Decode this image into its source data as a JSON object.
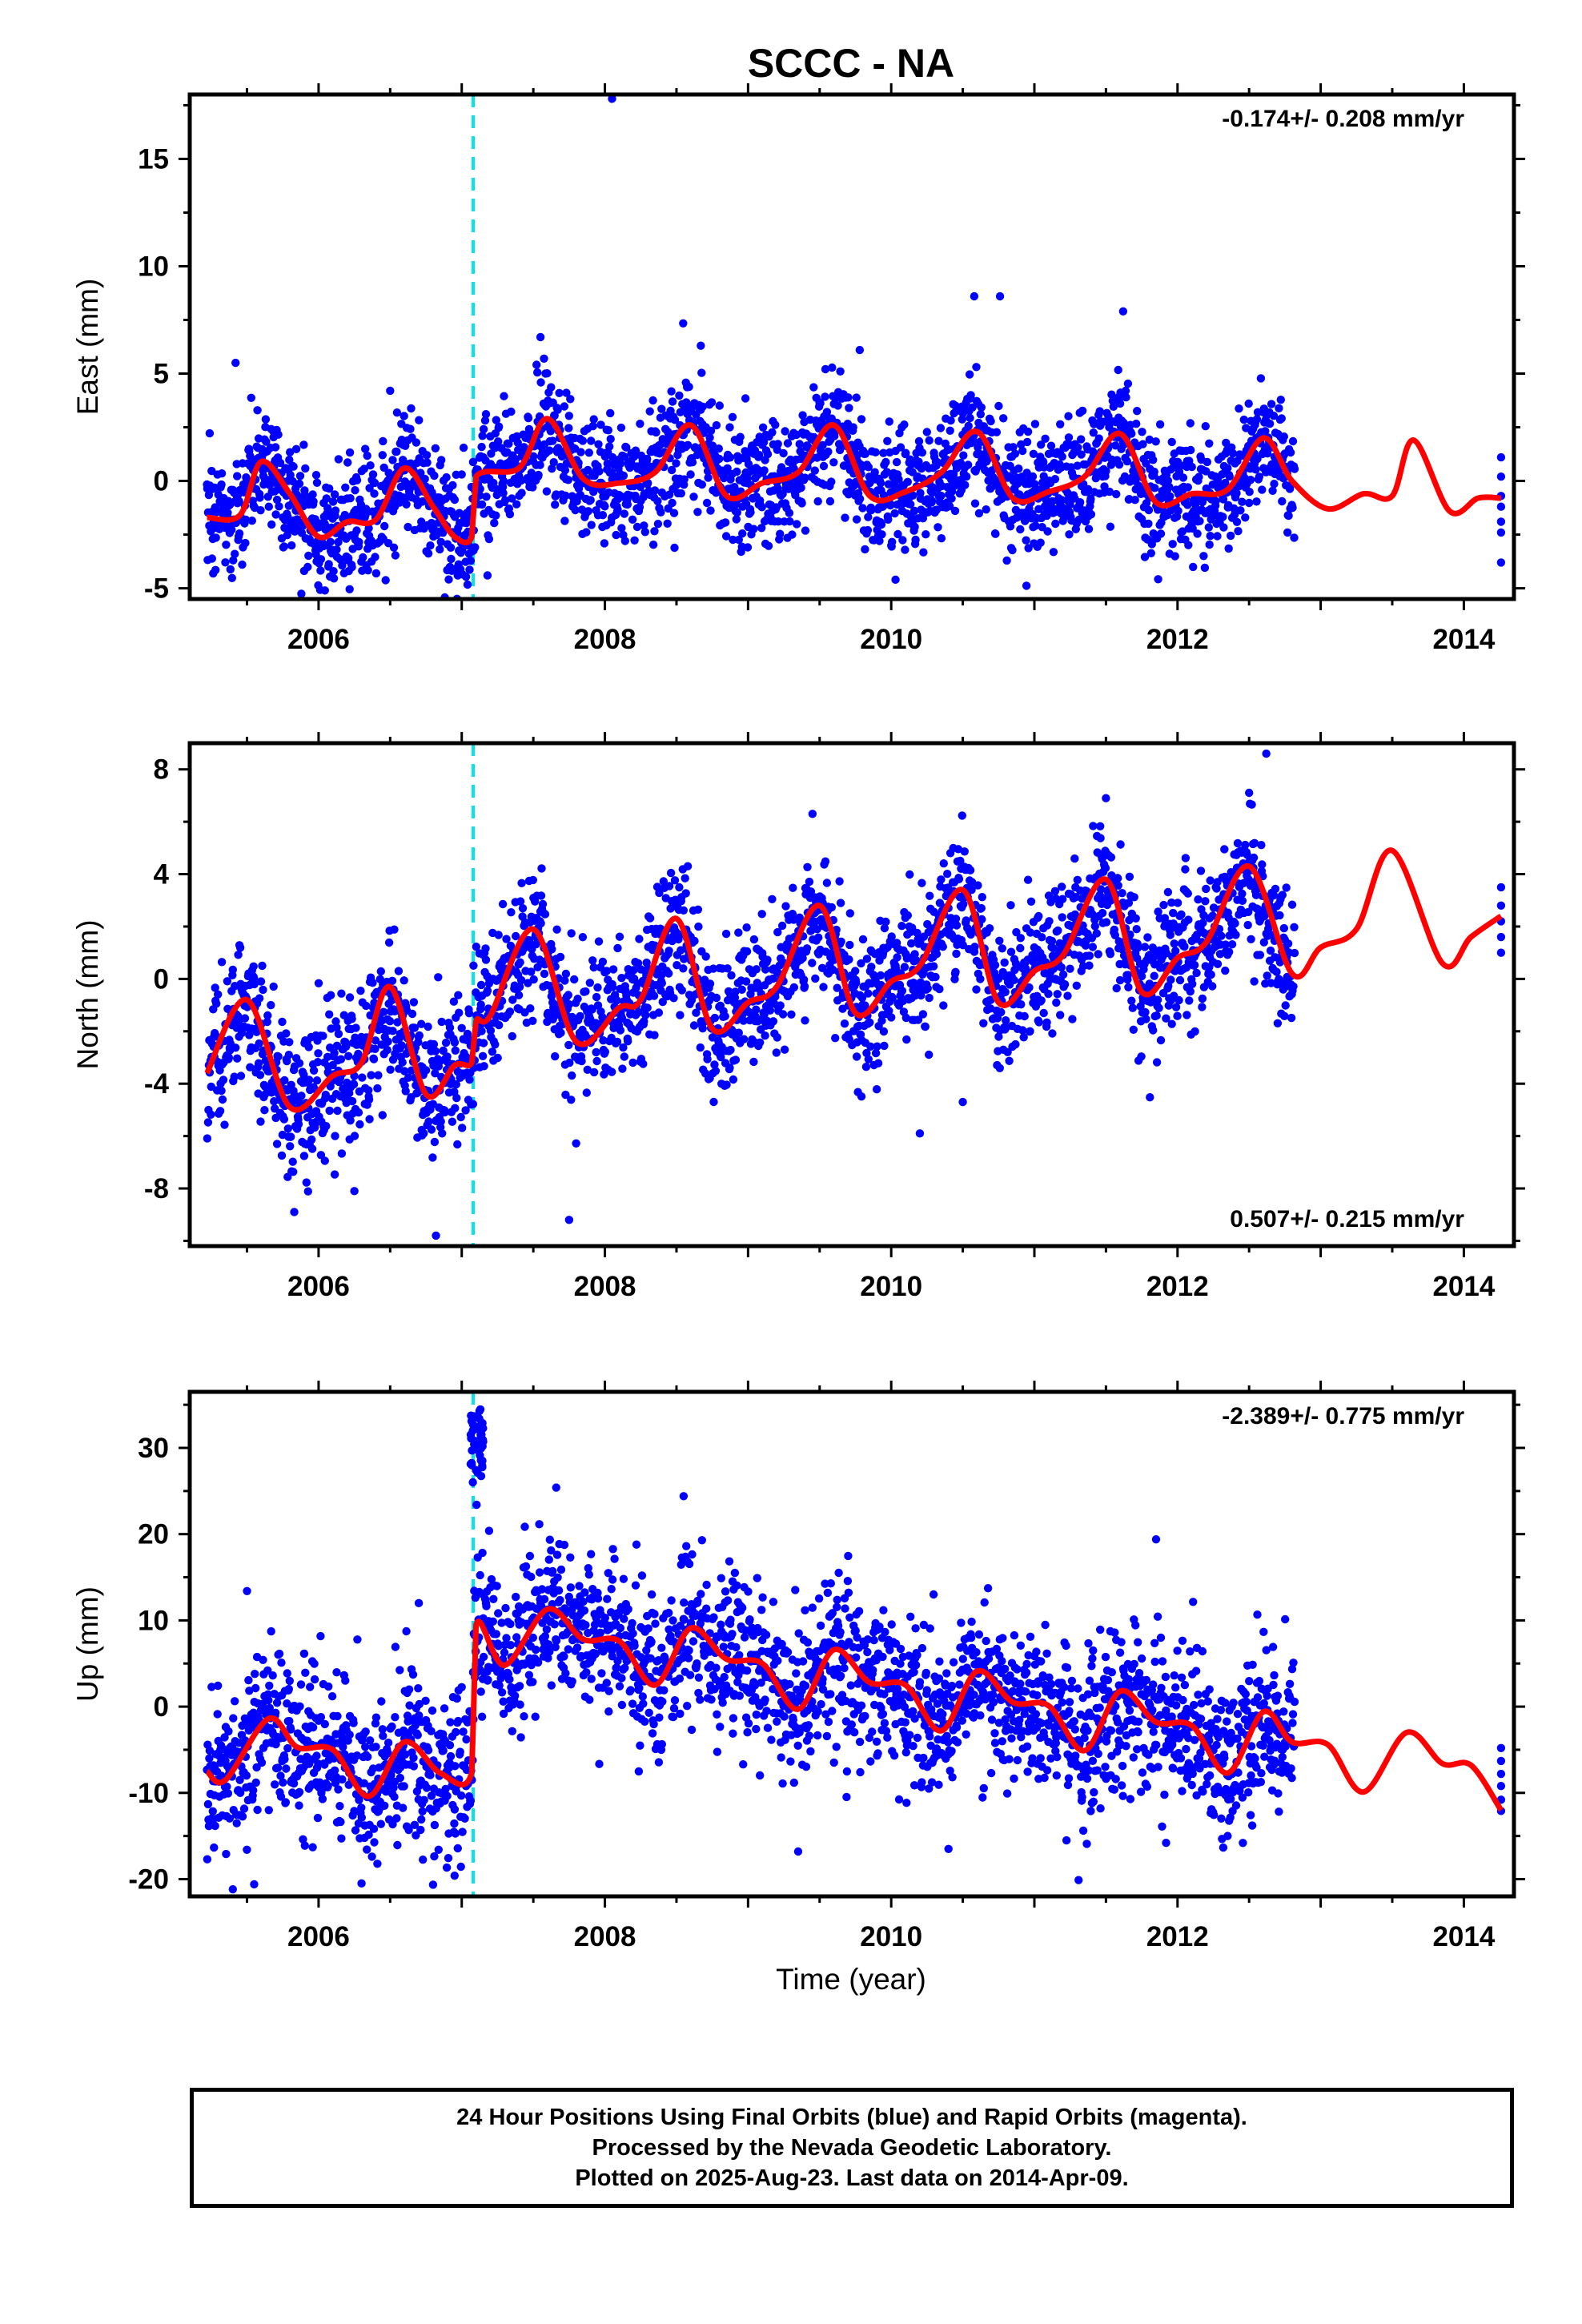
{
  "figure": {
    "title": "SCCC - NA",
    "xlabel": "Time (year)",
    "caption_lines": [
      "24 Hour Positions Using Final Orbits (blue) and Rapid Orbits (magenta).",
      "Processed by the Nevada Geodetic Laboratory.",
      "Plotted on 2025-Aug-23. Last data on 2014-Apr-09."
    ],
    "colors": {
      "points": "#0000ff",
      "model": "#ff0000",
      "event_line": "#00e5ee",
      "axes": "#000000"
    }
  },
  "chart_data": [
    {
      "type": "scatter",
      "panel": "east",
      "ylabel": "East (mm)",
      "rate_label": "-0.174+/- 0.208 mm/yr",
      "rate_label_position": "top-right",
      "xlim": [
        2005.1,
        2014.35
      ],
      "ylim": [
        -5.5,
        18.0
      ],
      "xticks": [
        2006,
        2008,
        2010,
        2012,
        2014
      ],
      "yticks": [
        -5,
        0,
        5,
        10,
        15
      ],
      "event_line_x": 2007.08,
      "data_span": [
        2005.22,
        2012.82
      ],
      "tail_points": {
        "x": 2014.26,
        "values": [
          1.1,
          0.2,
          -0.7,
          -1.2,
          -1.9,
          -2.4,
          -3.8
        ]
      },
      "outliers": [
        {
          "x": 2008.05,
          "y": 17.8
        },
        {
          "x": 2010.58,
          "y": 8.6
        },
        {
          "x": 2010.76,
          "y": 8.6
        },
        {
          "x": 2011.62,
          "y": 7.9
        },
        {
          "x": 2007.55,
          "y": 6.7
        },
        {
          "x": 2008.67,
          "y": 6.3
        },
        {
          "x": 2009.78,
          "y": 6.1
        },
        {
          "x": 2005.42,
          "y": 5.5
        },
        {
          "x": 2006.5,
          "y": 4.2
        },
        {
          "x": 2010.03,
          "y": -4.6
        },
        {
          "x": 2007.18,
          "y": -4.4
        }
      ],
      "model_curve": {
        "x": [
          2005.22,
          2005.45,
          2005.6,
          2005.8,
          2006.0,
          2006.2,
          2006.4,
          2006.6,
          2006.8,
          2006.95,
          2007.07,
          2007.1,
          2007.4,
          2007.6,
          2007.85,
          2008.1,
          2008.35,
          2008.6,
          2008.85,
          2009.1,
          2009.35,
          2009.6,
          2009.85,
          2010.1,
          2010.35,
          2010.6,
          2010.85,
          2011.1,
          2011.35,
          2011.6,
          2011.85,
          2012.1,
          2012.35,
          2012.6,
          2012.8,
          2013.05,
          2013.3,
          2013.5,
          2013.65,
          2013.9,
          2014.1,
          2014.26
        ],
        "y": [
          -1.7,
          -1.6,
          0.9,
          -0.6,
          -2.6,
          -1.9,
          -1.8,
          0.6,
          -1.2,
          -2.6,
          -2.6,
          0.2,
          0.6,
          2.9,
          0.1,
          -0.1,
          0.4,
          2.6,
          -0.7,
          -0.1,
          0.4,
          2.6,
          -0.7,
          -0.5,
          0.4,
          2.3,
          -0.8,
          -0.5,
          0.2,
          2.2,
          -1.0,
          -0.6,
          -0.4,
          2.0,
          0.0,
          -1.3,
          -0.6,
          -0.7,
          1.9,
          -1.4,
          -0.8,
          -0.8
        ]
      },
      "scatter_band": {
        "noise_sd_mm": 1.4
      }
    },
    {
      "type": "scatter",
      "panel": "north",
      "ylabel": "North (mm)",
      "rate_label": "0.507+/- 0.215 mm/yr",
      "rate_label_position": "bottom-right",
      "xlim": [
        2005.1,
        2014.35
      ],
      "ylim": [
        -10.2,
        9.0
      ],
      "xticks": [
        2006,
        2008,
        2010,
        2012,
        2014
      ],
      "yticks": [
        -8,
        -4,
        0,
        4,
        8
      ],
      "event_line_x": 2007.08,
      "data_span": [
        2005.22,
        2012.82
      ],
      "tail_points": {
        "x": 2014.26,
        "values": [
          3.5,
          2.8,
          2.2,
          1.6,
          1.0
        ]
      },
      "outliers": [
        {
          "x": 2012.62,
          "y": 8.6
        },
        {
          "x": 2011.5,
          "y": 6.9
        },
        {
          "x": 2009.45,
          "y": 6.3
        },
        {
          "x": 2006.82,
          "y": -9.8
        },
        {
          "x": 2007.75,
          "y": -9.2
        },
        {
          "x": 2005.83,
          "y": -8.9
        },
        {
          "x": 2006.25,
          "y": -8.1
        },
        {
          "x": 2010.2,
          "y": -5.9
        },
        {
          "x": 2010.5,
          "y": -4.7
        }
      ],
      "model_curve": {
        "x": [
          2005.22,
          2005.5,
          2005.8,
          2006.1,
          2006.3,
          2006.5,
          2006.75,
          2006.95,
          2007.07,
          2007.1,
          2007.2,
          2007.5,
          2007.8,
          2008.1,
          2008.25,
          2008.5,
          2008.75,
          2009.0,
          2009.2,
          2009.5,
          2009.75,
          2010.0,
          2010.2,
          2010.5,
          2010.75,
          2011.0,
          2011.2,
          2011.5,
          2011.75,
          2012.0,
          2012.2,
          2012.5,
          2012.8,
          2013.0,
          2013.25,
          2013.5,
          2013.85,
          2014.05,
          2014.26
        ],
        "y": [
          -3.6,
          -0.8,
          -4.9,
          -3.7,
          -3.2,
          -0.3,
          -4.4,
          -3.3,
          -3.2,
          -1.6,
          -1.4,
          1.9,
          -2.4,
          -1.1,
          -0.8,
          2.3,
          -1.9,
          -0.9,
          -0.3,
          2.8,
          -1.3,
          -0.1,
          0.5,
          3.4,
          -0.9,
          0.3,
          0.9,
          3.8,
          -0.5,
          0.8,
          1.4,
          4.3,
          0.2,
          1.2,
          1.9,
          4.9,
          0.6,
          1.6,
          2.4
        ]
      },
      "scatter_band": {
        "noise_sd_mm": 1.3
      }
    },
    {
      "type": "scatter",
      "panel": "up",
      "ylabel": "Up (mm)",
      "rate_label": "-2.389+/- 0.775 mm/yr",
      "rate_label_position": "top-right",
      "xlim": [
        2005.1,
        2014.35
      ],
      "ylim": [
        -22.0,
        36.5
      ],
      "xticks": [
        2006,
        2008,
        2010,
        2012,
        2014
      ],
      "yticks": [
        -20,
        -10,
        0,
        10,
        20,
        30
      ],
      "event_line_x": 2007.08,
      "data_span": [
        2005.22,
        2012.82
      ],
      "tail_points": {
        "x": 2014.26,
        "values": [
          -4.8,
          -6.3,
          -7.8,
          -9.2,
          -10.8,
          -12.1
        ]
      },
      "outliers": [
        {
          "x": 2007.66,
          "y": 25.4
        },
        {
          "x": 2008.55,
          "y": 24.4
        },
        {
          "x": 2011.85,
          "y": 19.4
        },
        {
          "x": 2005.5,
          "y": 13.4
        },
        {
          "x": 2006.7,
          "y": 12.0
        },
        {
          "x": 2005.55,
          "y": -20.6
        },
        {
          "x": 2006.3,
          "y": -20.5
        },
        {
          "x": 2006.95,
          "y": -19.6
        },
        {
          "x": 2009.35,
          "y": -16.8
        },
        {
          "x": 2010.4,
          "y": -16.5
        },
        {
          "x": 2011.92,
          "y": -15.8
        },
        {
          "x": 2012.35,
          "y": -15.0
        }
      ],
      "offset_cluster": {
        "x_range": [
          2007.06,
          2007.15
        ],
        "y_range": [
          26.0,
          34.5
        ]
      },
      "model_curve": {
        "x": [
          2005.22,
          2005.35,
          2005.65,
          2005.85,
          2006.1,
          2006.35,
          2006.6,
          2006.85,
          2007.07,
          2007.1,
          2007.3,
          2007.6,
          2007.85,
          2008.1,
          2008.35,
          2008.6,
          2008.85,
          2009.1,
          2009.35,
          2009.6,
          2009.85,
          2010.1,
          2010.35,
          2010.6,
          2010.85,
          2011.1,
          2011.35,
          2011.6,
          2011.85,
          2012.1,
          2012.35,
          2012.6,
          2012.8,
          2013.05,
          2013.3,
          2013.6,
          2013.85,
          2014.05,
          2014.26
        ],
        "y": [
          -7.5,
          -8.5,
          -1.4,
          -4.7,
          -5.0,
          -10.4,
          -4.1,
          -7.7,
          -7.6,
          9.5,
          4.8,
          11.3,
          7.8,
          7.6,
          2.5,
          9.1,
          5.5,
          5.0,
          -0.3,
          6.6,
          2.8,
          2.5,
          -2.8,
          4.1,
          0.5,
          0.1,
          -5.1,
          1.8,
          -1.8,
          -2.2,
          -7.7,
          -0.6,
          -4.1,
          -4.4,
          -9.9,
          -3.0,
          -6.6,
          -6.8,
          -12.0
        ]
      },
      "scatter_band": {
        "noise_sd_mm": 4.5
      }
    }
  ]
}
